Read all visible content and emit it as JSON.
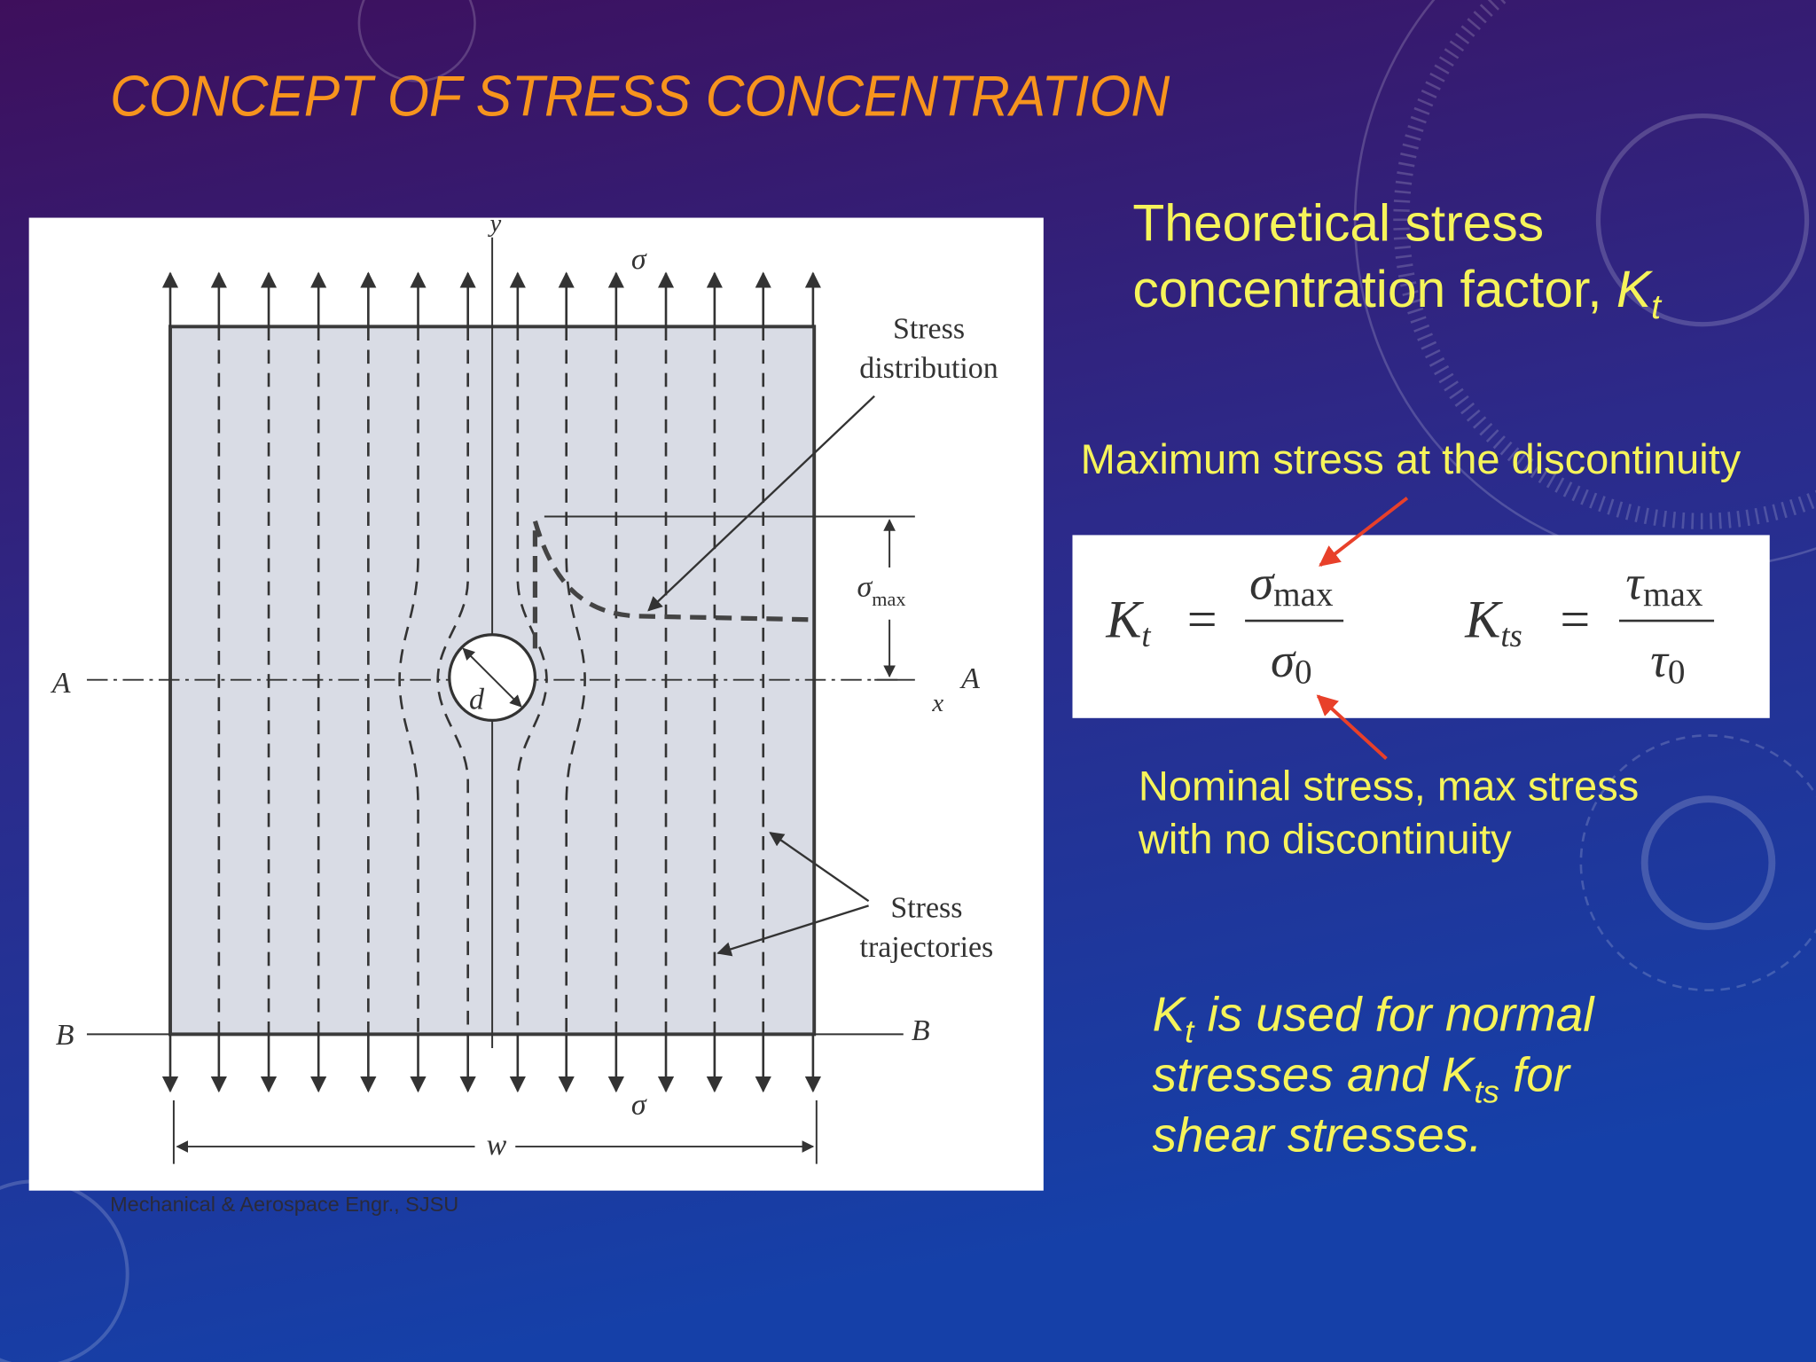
{
  "title": "CONCEPT OF STRESS CONCENTRATION",
  "heading": {
    "lines": [
      "Theoretical stress",
      "concentration factor, "
    ],
    "symbol": "K",
    "sub": "t"
  },
  "max_label": "Maximum stress at the discontinuity",
  "formulas": {
    "kt": {
      "symbol": "K",
      "sub": "t",
      "equals": "=",
      "numerator": {
        "symbol": "σ",
        "sub": "max"
      },
      "denominator": {
        "symbol": "σ",
        "sub": "0"
      }
    },
    "kts": {
      "symbol": "K",
      "sub": "ts",
      "equals": "=",
      "numerator": {
        "symbol": "τ",
        "sub": "max"
      },
      "denominator": {
        "symbol": "τ",
        "sub": "0"
      }
    }
  },
  "nominal_label": {
    "lines": [
      "Nominal stress, max stress",
      "with no discontinuity"
    ]
  },
  "note": {
    "line1": {
      "symbol": "K",
      "sub": "t",
      "text": " is used for normal"
    },
    "line2": {
      "text": "stresses and ",
      "symbol": "K",
      "sub": "ts",
      "text_after": " for"
    },
    "line3": "shear stresses."
  },
  "diagram": {
    "y_axis": "y",
    "sigma_top": "σ",
    "sigma_bottom": "σ",
    "stress_distribution": [
      "Stress",
      "distribution"
    ],
    "sigma_max": {
      "symbol": "σ",
      "sub": "max"
    },
    "a_left": "A",
    "a_right": "A",
    "x_axis": "x",
    "d": "d",
    "b_left": "B",
    "b_right": "B",
    "w": "w",
    "stress_trajectories": [
      "Stress",
      "trajectories"
    ]
  },
  "footer": "Mechanical & Aerospace Engr., SJSU"
}
